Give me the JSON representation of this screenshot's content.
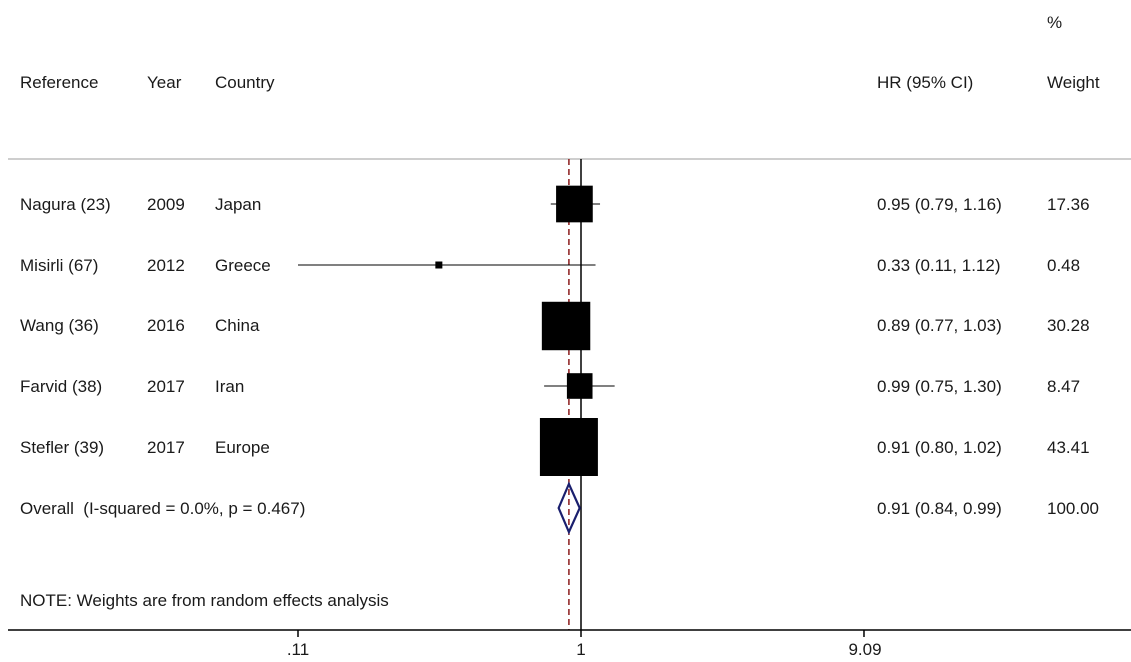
{
  "header": {
    "reference": "Reference",
    "year": "Year",
    "country": "Country",
    "hr": "HR (95% CI)",
    "weight_pct": "%",
    "weight": "Weight"
  },
  "rows": [
    {
      "reference": "Nagura (23)",
      "year": "2009",
      "country": "Japan",
      "hr_text": "0.95 (0.79, 1.16)",
      "weight": "17.36"
    },
    {
      "reference": "Misirli (67)",
      "year": "2012",
      "country": "Greece",
      "hr_text": "0.33 (0.11, 1.12)",
      "weight": "0.48"
    },
    {
      "reference": "Wang (36)",
      "year": "2016",
      "country": "China",
      "hr_text": "0.89 (0.77, 1.03)",
      "weight": "30.28"
    },
    {
      "reference": "Farvid (38)",
      "year": "2017",
      "country": "Iran",
      "hr_text": "0.99 (0.75, 1.30)",
      "weight": "8.47"
    },
    {
      "reference": "Stefler (39)",
      "year": "2017",
      "country": "Europe",
      "hr_text": "0.91 (0.80, 1.02)",
      "weight": "43.41"
    }
  ],
  "overall": {
    "label": "Overall  (I-squared = 0.0%, p = 0.467)",
    "hr_text": "0.91 (0.84, 0.99)",
    "weight": "100.00"
  },
  "note": "NOTE: Weights are from random effects analysis",
  "chart_data": {
    "type": "scatter",
    "subtype": "forest-plot",
    "x_scale": "log",
    "xlim": [
      0.11,
      9.09
    ],
    "x_ticks": [
      ".11",
      "1",
      "9.09"
    ],
    "x_tick_values": [
      0.11,
      1,
      9.09
    ],
    "null_line": 1,
    "pooled_line": 0.91,
    "studies": [
      {
        "name": "Nagura (23)",
        "hr": 0.95,
        "lo": 0.79,
        "hi": 1.16,
        "weight": 17.36
      },
      {
        "name": "Misirli (67)",
        "hr": 0.33,
        "lo": 0.11,
        "hi": 1.12,
        "weight": 0.48
      },
      {
        "name": "Wang (36)",
        "hr": 0.89,
        "lo": 0.77,
        "hi": 1.03,
        "weight": 30.28
      },
      {
        "name": "Farvid (38)",
        "hr": 0.99,
        "lo": 0.75,
        "hi": 1.3,
        "weight": 8.47
      },
      {
        "name": "Stefler (39)",
        "hr": 0.91,
        "lo": 0.8,
        "hi": 1.02,
        "weight": 43.41
      }
    ],
    "overall": {
      "hr": 0.91,
      "lo": 0.84,
      "hi": 0.99
    },
    "colors": {
      "marker": "#000000",
      "diamond": "#1a1f6e",
      "pooled_line": "#8b1a1a",
      "axis": "#000000",
      "separator": "#bdbdbd"
    }
  }
}
